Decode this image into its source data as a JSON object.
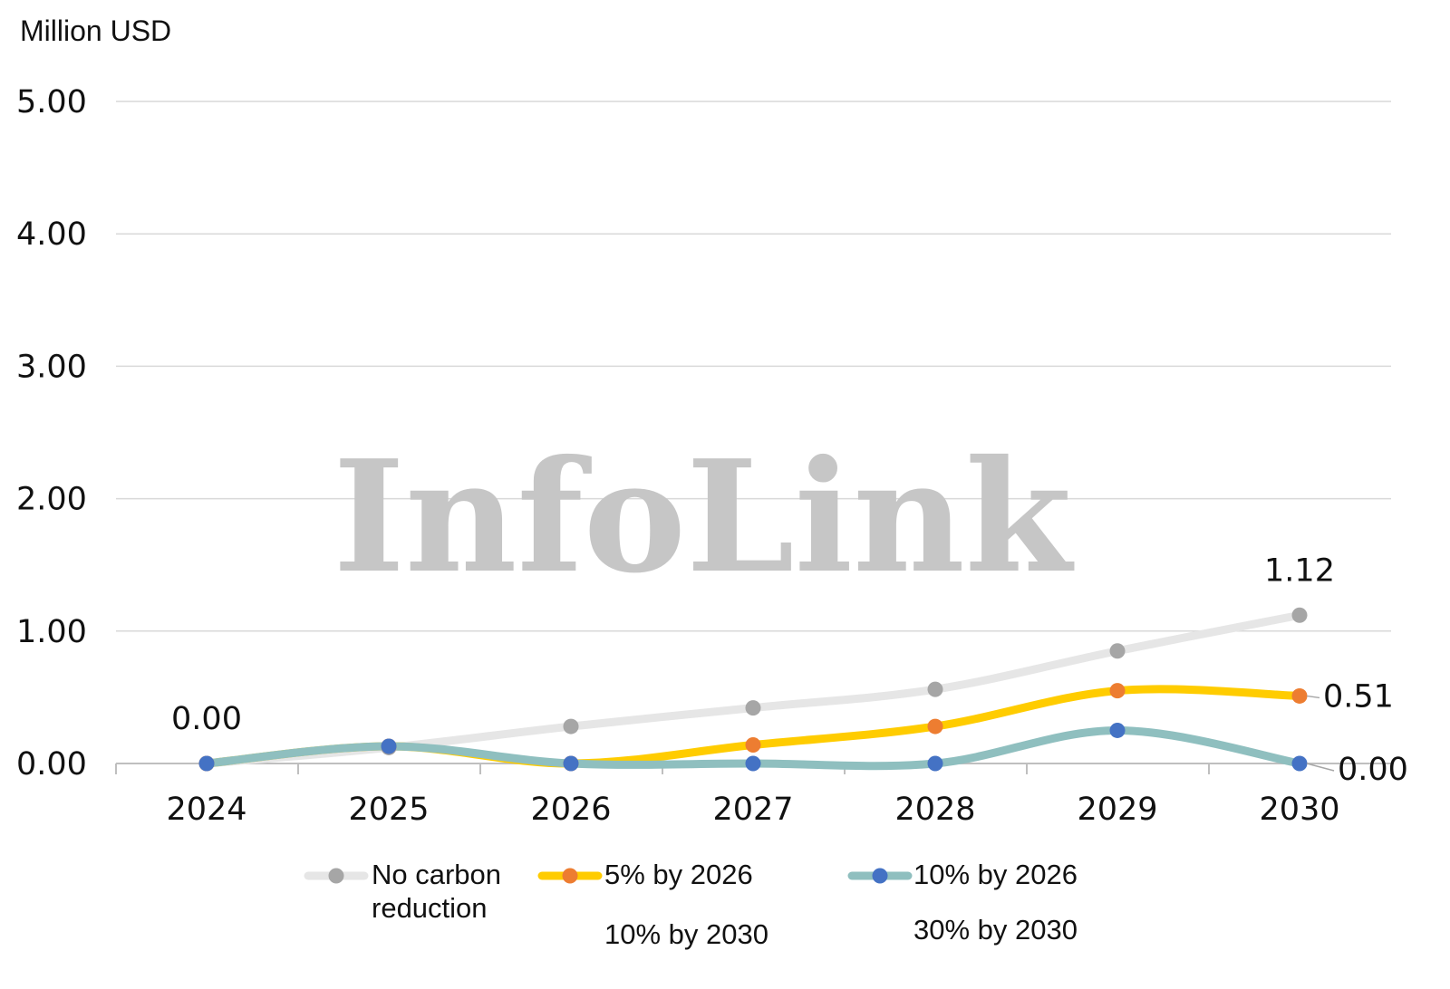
{
  "chart_data": {
    "type": "line",
    "unit_label": "Million USD",
    "watermark": "InfoLink",
    "categories": [
      "2024",
      "2025",
      "2026",
      "2027",
      "2028",
      "2029",
      "2030"
    ],
    "y_ticks": [
      "0.00",
      "1.00",
      "2.00",
      "3.00",
      "4.00",
      "5.00"
    ],
    "ylim": [
      0,
      5
    ],
    "grid": true,
    "legend_position": "bottom",
    "series": [
      {
        "name_lines": [
          "No carbon",
          "reduction"
        ],
        "values": [
          0.0,
          0.12,
          0.28,
          0.42,
          0.56,
          0.85,
          1.12
        ],
        "line_color": "#e6e6e6",
        "marker_color": "#a6a6a6"
      },
      {
        "name_lines": [
          "5% by 2026",
          "10% by 2030"
        ],
        "values": [
          0.0,
          0.13,
          0.0,
          0.14,
          0.28,
          0.55,
          0.51
        ],
        "line_color": "#ffcc00",
        "marker_color": "#ed7d31"
      },
      {
        "name_lines": [
          "10% by 2026",
          "30% by 2030"
        ],
        "values": [
          0.0,
          0.13,
          0.0,
          0.0,
          0.0,
          0.25,
          0.0
        ],
        "line_color": "#8fbfbf",
        "marker_color": "#4472c4"
      }
    ],
    "data_labels": [
      {
        "series": 2,
        "index": 0,
        "text": "0.00"
      },
      {
        "series": 0,
        "index": 6,
        "text": "1.12"
      },
      {
        "series": 1,
        "index": 6,
        "text": "0.51"
      },
      {
        "series": 2,
        "index": 6,
        "text": "0.00"
      }
    ]
  }
}
